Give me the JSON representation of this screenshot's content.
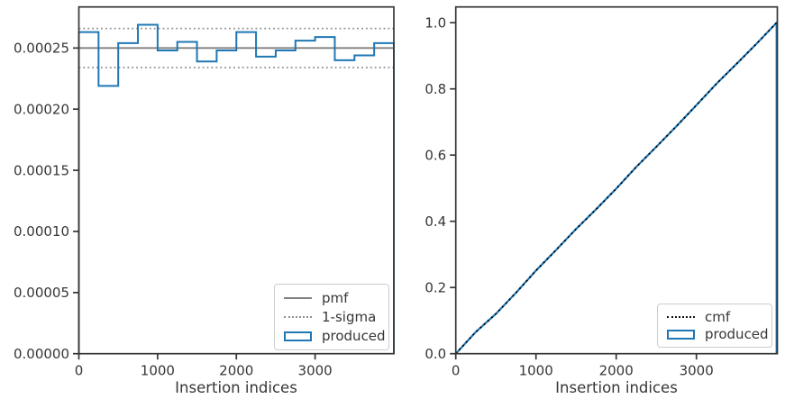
{
  "chart_data": [
    {
      "type": "step-histogram",
      "title": "",
      "xlabel": "Insertion indices",
      "ylabel": "",
      "xlim": [
        0,
        4000
      ],
      "ylim": [
        0,
        0.0002836
      ],
      "grid": false,
      "xticks": [
        0,
        1000,
        2000,
        3000
      ],
      "xtick_labels": [
        "0",
        "1000",
        "2000",
        "3000"
      ],
      "yticks": [
        0,
        5e-05,
        0.0001,
        0.00015,
        0.0002,
        0.00025
      ],
      "ytick_labels": [
        "0.00000",
        "0.00005",
        "0.00010",
        "0.00015",
        "0.00020",
        "0.00025"
      ],
      "bin_width": 250,
      "series": [
        {
          "name": "pmf",
          "type": "hline",
          "style": "solid",
          "color": "#808080",
          "y": 0.00025
        },
        {
          "name": "1-sigma",
          "type": "hline",
          "style": "dotted",
          "color": "#8f8f8f",
          "y_values": [
            0.000266,
            0.000234
          ]
        },
        {
          "name": "produced",
          "type": "step",
          "style": "solid",
          "color": "#1f77b4",
          "values": [
            0.000263,
            0.000219,
            0.000254,
            0.000269,
            0.000248,
            0.000255,
            0.000239,
            0.000248,
            0.000263,
            0.000243,
            0.000248,
            0.000256,
            0.000259,
            0.00024,
            0.000244,
            0.000254
          ]
        }
      ],
      "legend": {
        "position": "lower-right",
        "entries": [
          {
            "label": "pmf",
            "marker": "solid-gray-line"
          },
          {
            "label": "1-sigma",
            "marker": "dotted-gray-line"
          },
          {
            "label": "produced",
            "marker": "blue-rect-outline"
          }
        ]
      }
    },
    {
      "type": "line",
      "title": "",
      "xlabel": "Insertion indices",
      "ylabel": "",
      "xlim": [
        0,
        4009
      ],
      "ylim": [
        0,
        1.0476
      ],
      "grid": false,
      "xticks": [
        0,
        1000,
        2000,
        3000
      ],
      "xtick_labels": [
        "0",
        "1000",
        "2000",
        "3000"
      ],
      "yticks": [
        0,
        0.2,
        0.4,
        0.6,
        0.8,
        1.0
      ],
      "ytick_labels": [
        "0.0",
        "0.2",
        "0.4",
        "0.6",
        "0.8",
        "1.0"
      ],
      "series": [
        {
          "name": "produced",
          "type": "line",
          "style": "solid",
          "color": "#1f77b4",
          "close_right": true,
          "x": [
            0,
            250,
            500,
            750,
            1000,
            1250,
            1500,
            1750,
            2000,
            2250,
            2500,
            2750,
            3000,
            3250,
            3500,
            3750,
            4000
          ],
          "y": [
            0,
            0.0657,
            0.1204,
            0.1839,
            0.2511,
            0.3131,
            0.3768,
            0.4365,
            0.4985,
            0.5642,
            0.625,
            0.6869,
            0.7509,
            0.8156,
            0.8756,
            0.9365,
            1.0
          ]
        },
        {
          "name": "cmf",
          "type": "line",
          "style": "dotted",
          "color": "#000000",
          "x": [
            0,
            250,
            500,
            750,
            1000,
            1250,
            1500,
            1750,
            2000,
            2250,
            2500,
            2750,
            3000,
            3250,
            3500,
            3750,
            4000
          ],
          "y": [
            0,
            0.0657,
            0.1204,
            0.1839,
            0.2511,
            0.3131,
            0.3768,
            0.4365,
            0.4985,
            0.5642,
            0.625,
            0.6869,
            0.7509,
            0.8156,
            0.8756,
            0.9365,
            1.0
          ]
        }
      ],
      "legend": {
        "position": "lower-right",
        "entries": [
          {
            "label": "cmf",
            "marker": "dotted-black-line"
          },
          {
            "label": "produced",
            "marker": "blue-rect-outline"
          }
        ]
      }
    }
  ],
  "style": {
    "axis_color": "#363636",
    "accent_blue": "#1f77b4",
    "pmf_gray": "#808080",
    "background": "#ffffff"
  }
}
